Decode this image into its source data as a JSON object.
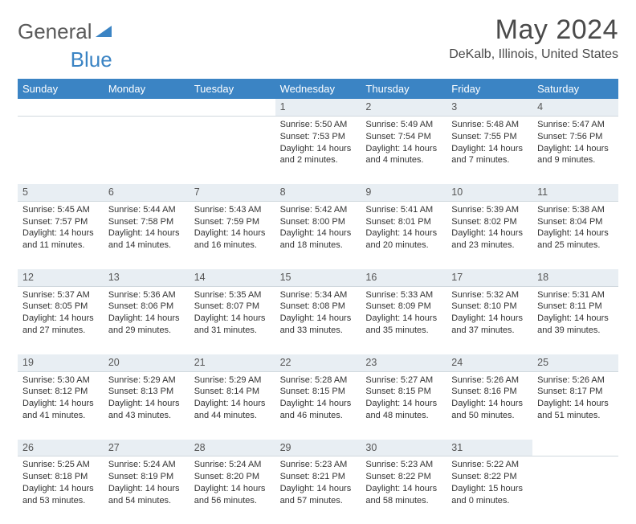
{
  "brand": {
    "part1": "General",
    "part2": "Blue"
  },
  "header": {
    "month_title": "May 2024",
    "location": "DeKalb, Illinois, United States"
  },
  "colors": {
    "accent": "#3b84c4",
    "header_text": "#ffffff",
    "daynum_bg": "#e8eef3",
    "body_text": "#333333",
    "title_text": "#4a4a4a"
  },
  "layout": {
    "columns": 7,
    "cell_fontsize": 11,
    "header_fontsize": 13,
    "title_fontsize": 34,
    "location_fontsize": 16
  },
  "day_names": [
    "Sunday",
    "Monday",
    "Tuesday",
    "Wednesday",
    "Thursday",
    "Friday",
    "Saturday"
  ],
  "weeks": [
    {
      "nums": [
        "",
        "",
        "",
        "1",
        "2",
        "3",
        "4"
      ],
      "cells": [
        null,
        null,
        null,
        {
          "sunrise": "Sunrise: 5:50 AM",
          "sunset": "Sunset: 7:53 PM",
          "daylight": "Daylight: 14 hours and 2 minutes."
        },
        {
          "sunrise": "Sunrise: 5:49 AM",
          "sunset": "Sunset: 7:54 PM",
          "daylight": "Daylight: 14 hours and 4 minutes."
        },
        {
          "sunrise": "Sunrise: 5:48 AM",
          "sunset": "Sunset: 7:55 PM",
          "daylight": "Daylight: 14 hours and 7 minutes."
        },
        {
          "sunrise": "Sunrise: 5:47 AM",
          "sunset": "Sunset: 7:56 PM",
          "daylight": "Daylight: 14 hours and 9 minutes."
        }
      ]
    },
    {
      "nums": [
        "5",
        "6",
        "7",
        "8",
        "9",
        "10",
        "11"
      ],
      "cells": [
        {
          "sunrise": "Sunrise: 5:45 AM",
          "sunset": "Sunset: 7:57 PM",
          "daylight": "Daylight: 14 hours and 11 minutes."
        },
        {
          "sunrise": "Sunrise: 5:44 AM",
          "sunset": "Sunset: 7:58 PM",
          "daylight": "Daylight: 14 hours and 14 minutes."
        },
        {
          "sunrise": "Sunrise: 5:43 AM",
          "sunset": "Sunset: 7:59 PM",
          "daylight": "Daylight: 14 hours and 16 minutes."
        },
        {
          "sunrise": "Sunrise: 5:42 AM",
          "sunset": "Sunset: 8:00 PM",
          "daylight": "Daylight: 14 hours and 18 minutes."
        },
        {
          "sunrise": "Sunrise: 5:41 AM",
          "sunset": "Sunset: 8:01 PM",
          "daylight": "Daylight: 14 hours and 20 minutes."
        },
        {
          "sunrise": "Sunrise: 5:39 AM",
          "sunset": "Sunset: 8:02 PM",
          "daylight": "Daylight: 14 hours and 23 minutes."
        },
        {
          "sunrise": "Sunrise: 5:38 AM",
          "sunset": "Sunset: 8:04 PM",
          "daylight": "Daylight: 14 hours and 25 minutes."
        }
      ]
    },
    {
      "nums": [
        "12",
        "13",
        "14",
        "15",
        "16",
        "17",
        "18"
      ],
      "cells": [
        {
          "sunrise": "Sunrise: 5:37 AM",
          "sunset": "Sunset: 8:05 PM",
          "daylight": "Daylight: 14 hours and 27 minutes."
        },
        {
          "sunrise": "Sunrise: 5:36 AM",
          "sunset": "Sunset: 8:06 PM",
          "daylight": "Daylight: 14 hours and 29 minutes."
        },
        {
          "sunrise": "Sunrise: 5:35 AM",
          "sunset": "Sunset: 8:07 PM",
          "daylight": "Daylight: 14 hours and 31 minutes."
        },
        {
          "sunrise": "Sunrise: 5:34 AM",
          "sunset": "Sunset: 8:08 PM",
          "daylight": "Daylight: 14 hours and 33 minutes."
        },
        {
          "sunrise": "Sunrise: 5:33 AM",
          "sunset": "Sunset: 8:09 PM",
          "daylight": "Daylight: 14 hours and 35 minutes."
        },
        {
          "sunrise": "Sunrise: 5:32 AM",
          "sunset": "Sunset: 8:10 PM",
          "daylight": "Daylight: 14 hours and 37 minutes."
        },
        {
          "sunrise": "Sunrise: 5:31 AM",
          "sunset": "Sunset: 8:11 PM",
          "daylight": "Daylight: 14 hours and 39 minutes."
        }
      ]
    },
    {
      "nums": [
        "19",
        "20",
        "21",
        "22",
        "23",
        "24",
        "25"
      ],
      "cells": [
        {
          "sunrise": "Sunrise: 5:30 AM",
          "sunset": "Sunset: 8:12 PM",
          "daylight": "Daylight: 14 hours and 41 minutes."
        },
        {
          "sunrise": "Sunrise: 5:29 AM",
          "sunset": "Sunset: 8:13 PM",
          "daylight": "Daylight: 14 hours and 43 minutes."
        },
        {
          "sunrise": "Sunrise: 5:29 AM",
          "sunset": "Sunset: 8:14 PM",
          "daylight": "Daylight: 14 hours and 44 minutes."
        },
        {
          "sunrise": "Sunrise: 5:28 AM",
          "sunset": "Sunset: 8:15 PM",
          "daylight": "Daylight: 14 hours and 46 minutes."
        },
        {
          "sunrise": "Sunrise: 5:27 AM",
          "sunset": "Sunset: 8:15 PM",
          "daylight": "Daylight: 14 hours and 48 minutes."
        },
        {
          "sunrise": "Sunrise: 5:26 AM",
          "sunset": "Sunset: 8:16 PM",
          "daylight": "Daylight: 14 hours and 50 minutes."
        },
        {
          "sunrise": "Sunrise: 5:26 AM",
          "sunset": "Sunset: 8:17 PM",
          "daylight": "Daylight: 14 hours and 51 minutes."
        }
      ]
    },
    {
      "nums": [
        "26",
        "27",
        "28",
        "29",
        "30",
        "31",
        ""
      ],
      "cells": [
        {
          "sunrise": "Sunrise: 5:25 AM",
          "sunset": "Sunset: 8:18 PM",
          "daylight": "Daylight: 14 hours and 53 minutes."
        },
        {
          "sunrise": "Sunrise: 5:24 AM",
          "sunset": "Sunset: 8:19 PM",
          "daylight": "Daylight: 14 hours and 54 minutes."
        },
        {
          "sunrise": "Sunrise: 5:24 AM",
          "sunset": "Sunset: 8:20 PM",
          "daylight": "Daylight: 14 hours and 56 minutes."
        },
        {
          "sunrise": "Sunrise: 5:23 AM",
          "sunset": "Sunset: 8:21 PM",
          "daylight": "Daylight: 14 hours and 57 minutes."
        },
        {
          "sunrise": "Sunrise: 5:23 AM",
          "sunset": "Sunset: 8:22 PM",
          "daylight": "Daylight: 14 hours and 58 minutes."
        },
        {
          "sunrise": "Sunrise: 5:22 AM",
          "sunset": "Sunset: 8:22 PM",
          "daylight": "Daylight: 15 hours and 0 minutes."
        },
        null
      ]
    }
  ]
}
